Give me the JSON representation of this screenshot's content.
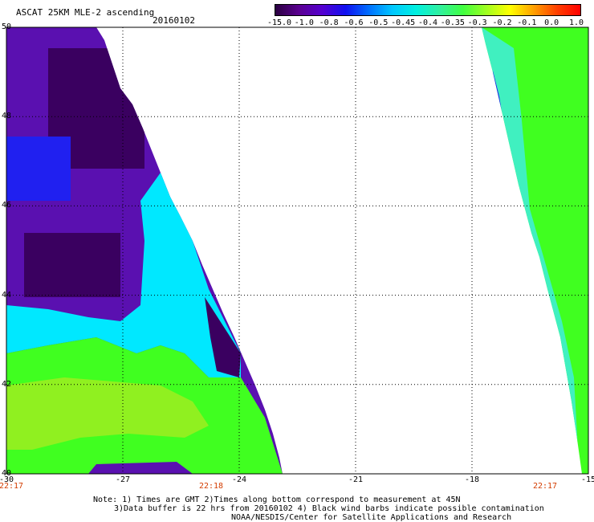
{
  "title": "ASCAT 25KM MLE-2 ascending",
  "date": "20160102",
  "colorbar": {
    "labels": [
      "-15.0",
      "-1.0",
      "-0.8",
      "-0.6",
      "-0.5",
      "-0.45",
      "-0.4",
      "-0.35",
      "-0.3",
      "-0.2",
      "-0.1",
      "0.0",
      "1.0"
    ],
    "colors": [
      "#2a0040",
      "#5a0090",
      "#5500d0",
      "#1010f0",
      "#0070ff",
      "#00c8ff",
      "#00f0e0",
      "#30f0a0",
      "#40ff40",
      "#a0ff20",
      "#ffff00",
      "#ffa000",
      "#ff4000",
      "#ff0000"
    ]
  },
  "axes": {
    "lon_ticks": [
      "-30",
      "-27",
      "-24",
      "-21",
      "-18",
      "-15"
    ],
    "lat_ticks": [
      "40",
      "42",
      "44",
      "46",
      "48",
      "50"
    ]
  },
  "times": [
    "22:17",
    "22:18",
    "22:17"
  ],
  "note": {
    "line1": "Note: 1) Times are GMT 2)Times along bottom correspond to measurement at 45N",
    "line2": "3)Data buffer is 22 hrs from 20160102 4) Black wind barbs indicate possible contamination",
    "line3": "NOAA/NESDIS/Center for Satellite Applications and Research"
  },
  "palette": {
    "deep_purple": "#3a0060",
    "purple": "#5a10b0",
    "blue": "#2020f0",
    "cyan": "#00e8ff",
    "aqua": "#40f0c0",
    "green": "#40ff20",
    "yellow_green": "#90f020"
  }
}
